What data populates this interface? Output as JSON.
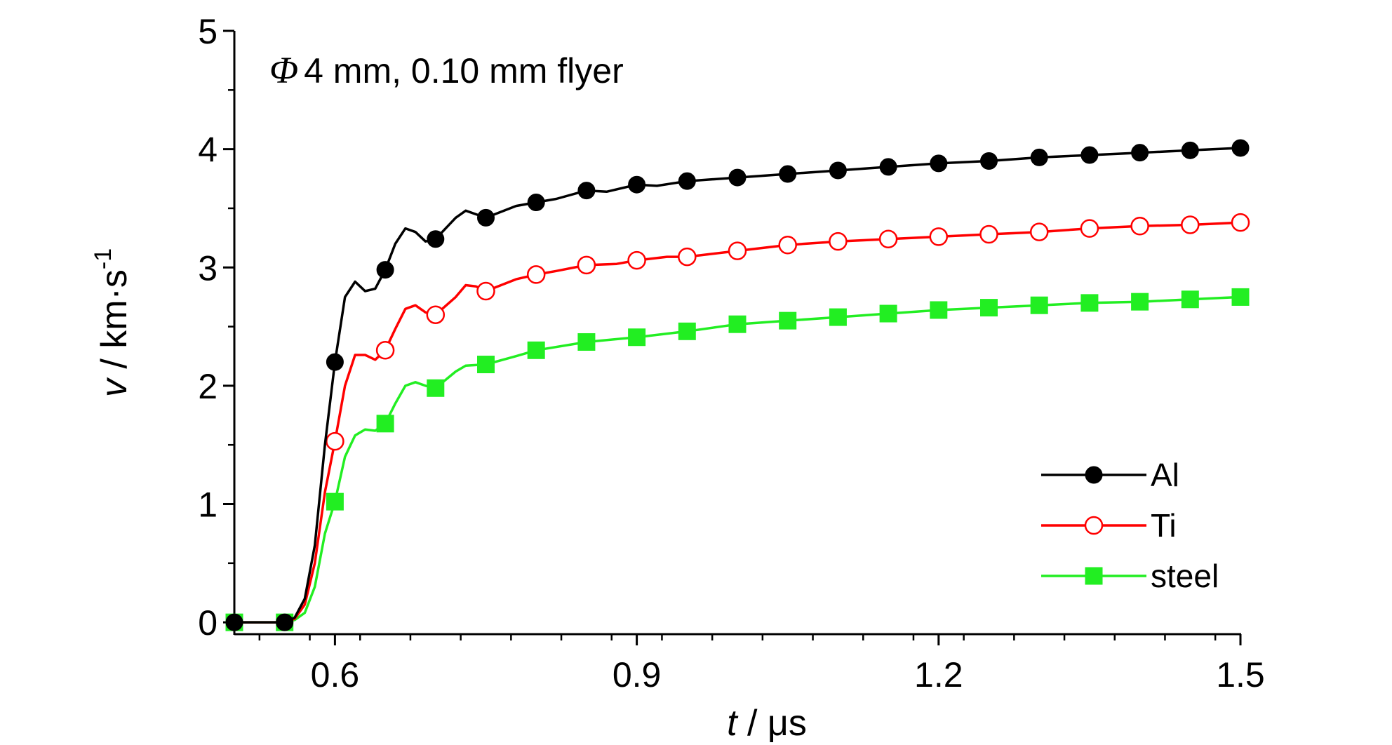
{
  "chart_data": {
    "type": "line",
    "annotation": {
      "symbol": "Φ",
      "text": "4 mm, 0.10 mm flyer"
    },
    "xlabel": {
      "var": "t",
      "rest": " / μs"
    },
    "ylabel": {
      "var": "v",
      "rest": " / km·s",
      "sup": "-1"
    },
    "xlim": [
      0.5,
      1.5
    ],
    "ylim": [
      -0.1,
      5
    ],
    "x_major_ticks": [
      0.6,
      0.9,
      1.2,
      1.5
    ],
    "x_tick_labels": [
      "0.6",
      "0.9",
      "1.2",
      "1.5"
    ],
    "y_major_ticks": [
      0,
      1,
      2,
      3,
      4,
      5
    ],
    "y_tick_labels": [
      "0",
      "1",
      "2",
      "3",
      "4",
      "5"
    ],
    "grid": false,
    "legend_position": "bottom-right",
    "series": [
      {
        "name": "Al",
        "color": "#000000",
        "marker": "filled-circle",
        "x": [
          0.5,
          0.55,
          0.56,
          0.57,
          0.58,
          0.59,
          0.6,
          0.61,
          0.62,
          0.63,
          0.64,
          0.65,
          0.66,
          0.67,
          0.68,
          0.69,
          0.7,
          0.72,
          0.73,
          0.74,
          0.75,
          0.78,
          0.8,
          0.82,
          0.85,
          0.87,
          0.9,
          0.92,
          0.95,
          1.0,
          1.05,
          1.1,
          1.15,
          1.2,
          1.25,
          1.3,
          1.35,
          1.4,
          1.45,
          1.5
        ],
        "y": [
          0,
          0,
          0.04,
          0.2,
          0.65,
          1.5,
          2.2,
          2.75,
          2.88,
          2.8,
          2.82,
          2.98,
          3.2,
          3.33,
          3.3,
          3.22,
          3.24,
          3.42,
          3.48,
          3.45,
          3.42,
          3.52,
          3.55,
          3.58,
          3.65,
          3.64,
          3.7,
          3.69,
          3.73,
          3.76,
          3.79,
          3.82,
          3.85,
          3.88,
          3.9,
          3.93,
          3.95,
          3.97,
          3.99,
          4.01
        ],
        "marker_x": [
          0.55,
          0.6,
          0.65,
          0.7,
          0.75,
          0.8,
          0.85,
          0.9,
          0.95,
          1.0,
          1.05,
          1.1,
          1.15,
          1.2,
          1.25,
          1.3,
          1.35,
          1.4,
          1.45,
          1.5
        ],
        "marker_y": [
          0,
          2.2,
          2.98,
          3.24,
          3.42,
          3.55,
          3.65,
          3.7,
          3.73,
          3.76,
          3.79,
          3.82,
          3.85,
          3.88,
          3.9,
          3.93,
          3.95,
          3.97,
          3.99,
          4.01
        ]
      },
      {
        "name": "Ti",
        "color": "#ff0000",
        "marker": "open-circle",
        "x": [
          0.5,
          0.55,
          0.56,
          0.57,
          0.58,
          0.59,
          0.6,
          0.61,
          0.62,
          0.63,
          0.64,
          0.65,
          0.66,
          0.67,
          0.68,
          0.69,
          0.7,
          0.72,
          0.73,
          0.74,
          0.75,
          0.78,
          0.8,
          0.82,
          0.85,
          0.88,
          0.9,
          0.93,
          0.95,
          1.0,
          1.05,
          1.1,
          1.15,
          1.2,
          1.25,
          1.3,
          1.35,
          1.4,
          1.45,
          1.5
        ],
        "y": [
          0,
          0,
          0.03,
          0.15,
          0.5,
          1.1,
          1.53,
          2.0,
          2.26,
          2.26,
          2.22,
          2.3,
          2.48,
          2.65,
          2.68,
          2.62,
          2.6,
          2.75,
          2.85,
          2.84,
          2.8,
          2.9,
          2.94,
          2.97,
          3.02,
          3.03,
          3.06,
          3.09,
          3.09,
          3.14,
          3.19,
          3.22,
          3.24,
          3.26,
          3.28,
          3.3,
          3.33,
          3.35,
          3.36,
          3.38
        ],
        "marker_x": [
          0.6,
          0.65,
          0.7,
          0.75,
          0.8,
          0.85,
          0.9,
          0.95,
          1.0,
          1.05,
          1.1,
          1.15,
          1.2,
          1.25,
          1.3,
          1.35,
          1.4,
          1.45,
          1.5
        ],
        "marker_y": [
          1.53,
          2.3,
          2.6,
          2.8,
          2.94,
          3.02,
          3.06,
          3.09,
          3.14,
          3.19,
          3.22,
          3.24,
          3.26,
          3.28,
          3.3,
          3.33,
          3.35,
          3.36,
          3.38
        ]
      },
      {
        "name": "steel",
        "color": "#22ee22",
        "marker": "filled-square",
        "x": [
          0.5,
          0.55,
          0.56,
          0.57,
          0.58,
          0.59,
          0.6,
          0.61,
          0.62,
          0.63,
          0.64,
          0.65,
          0.66,
          0.67,
          0.68,
          0.69,
          0.7,
          0.72,
          0.73,
          0.75,
          0.78,
          0.8,
          0.85,
          0.9,
          0.95,
          1.0,
          1.05,
          1.1,
          1.15,
          1.2,
          1.25,
          1.3,
          1.35,
          1.4,
          1.45,
          1.5
        ],
        "y": [
          0,
          0,
          0.02,
          0.08,
          0.3,
          0.75,
          1.02,
          1.4,
          1.58,
          1.63,
          1.62,
          1.68,
          1.85,
          2.0,
          2.03,
          2.0,
          1.98,
          2.12,
          2.17,
          2.18,
          2.25,
          2.3,
          2.37,
          2.41,
          2.46,
          2.52,
          2.55,
          2.58,
          2.61,
          2.64,
          2.66,
          2.68,
          2.7,
          2.71,
          2.73,
          2.75
        ],
        "marker_x": [
          0.5,
          0.55,
          0.6,
          0.65,
          0.7,
          0.75,
          0.8,
          0.85,
          0.9,
          0.95,
          1.0,
          1.05,
          1.1,
          1.15,
          1.2,
          1.25,
          1.3,
          1.35,
          1.4,
          1.45,
          1.5
        ],
        "marker_y": [
          0,
          0,
          1.02,
          1.68,
          1.98,
          2.18,
          2.3,
          2.37,
          2.41,
          2.46,
          2.52,
          2.55,
          2.58,
          2.61,
          2.64,
          2.66,
          2.68,
          2.7,
          2.71,
          2.73,
          2.75
        ]
      }
    ],
    "extra_markers": [
      {
        "series": "Al",
        "x": 0.5,
        "y": 0,
        "marker": "filled-circle"
      }
    ]
  }
}
